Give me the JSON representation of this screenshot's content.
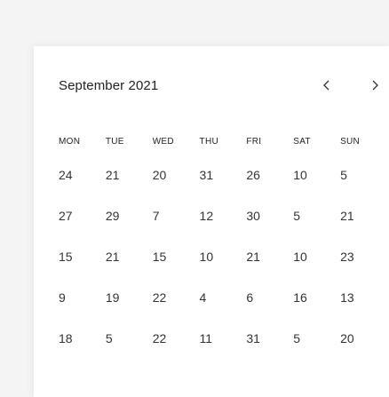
{
  "calendar": {
    "month_title": "September 2021",
    "prev_icon": "chevron-left-icon",
    "next_icon": "chevron-right-icon",
    "weekdays": [
      "MON",
      "TUE",
      "WED",
      "THU",
      "FRI",
      "SAT",
      "SUN"
    ],
    "weeks": [
      [
        "24",
        "21",
        "20",
        "31",
        "26",
        "10",
        "5"
      ],
      [
        "27",
        "29",
        "7",
        "12",
        "30",
        "5",
        "21"
      ],
      [
        "15",
        "21",
        "15",
        "10",
        "21",
        "10",
        "23"
      ],
      [
        "9",
        "19",
        "22",
        "4",
        "6",
        "16",
        "13"
      ],
      [
        "18",
        "5",
        "22",
        "11",
        "31",
        "5",
        "20"
      ]
    ]
  }
}
